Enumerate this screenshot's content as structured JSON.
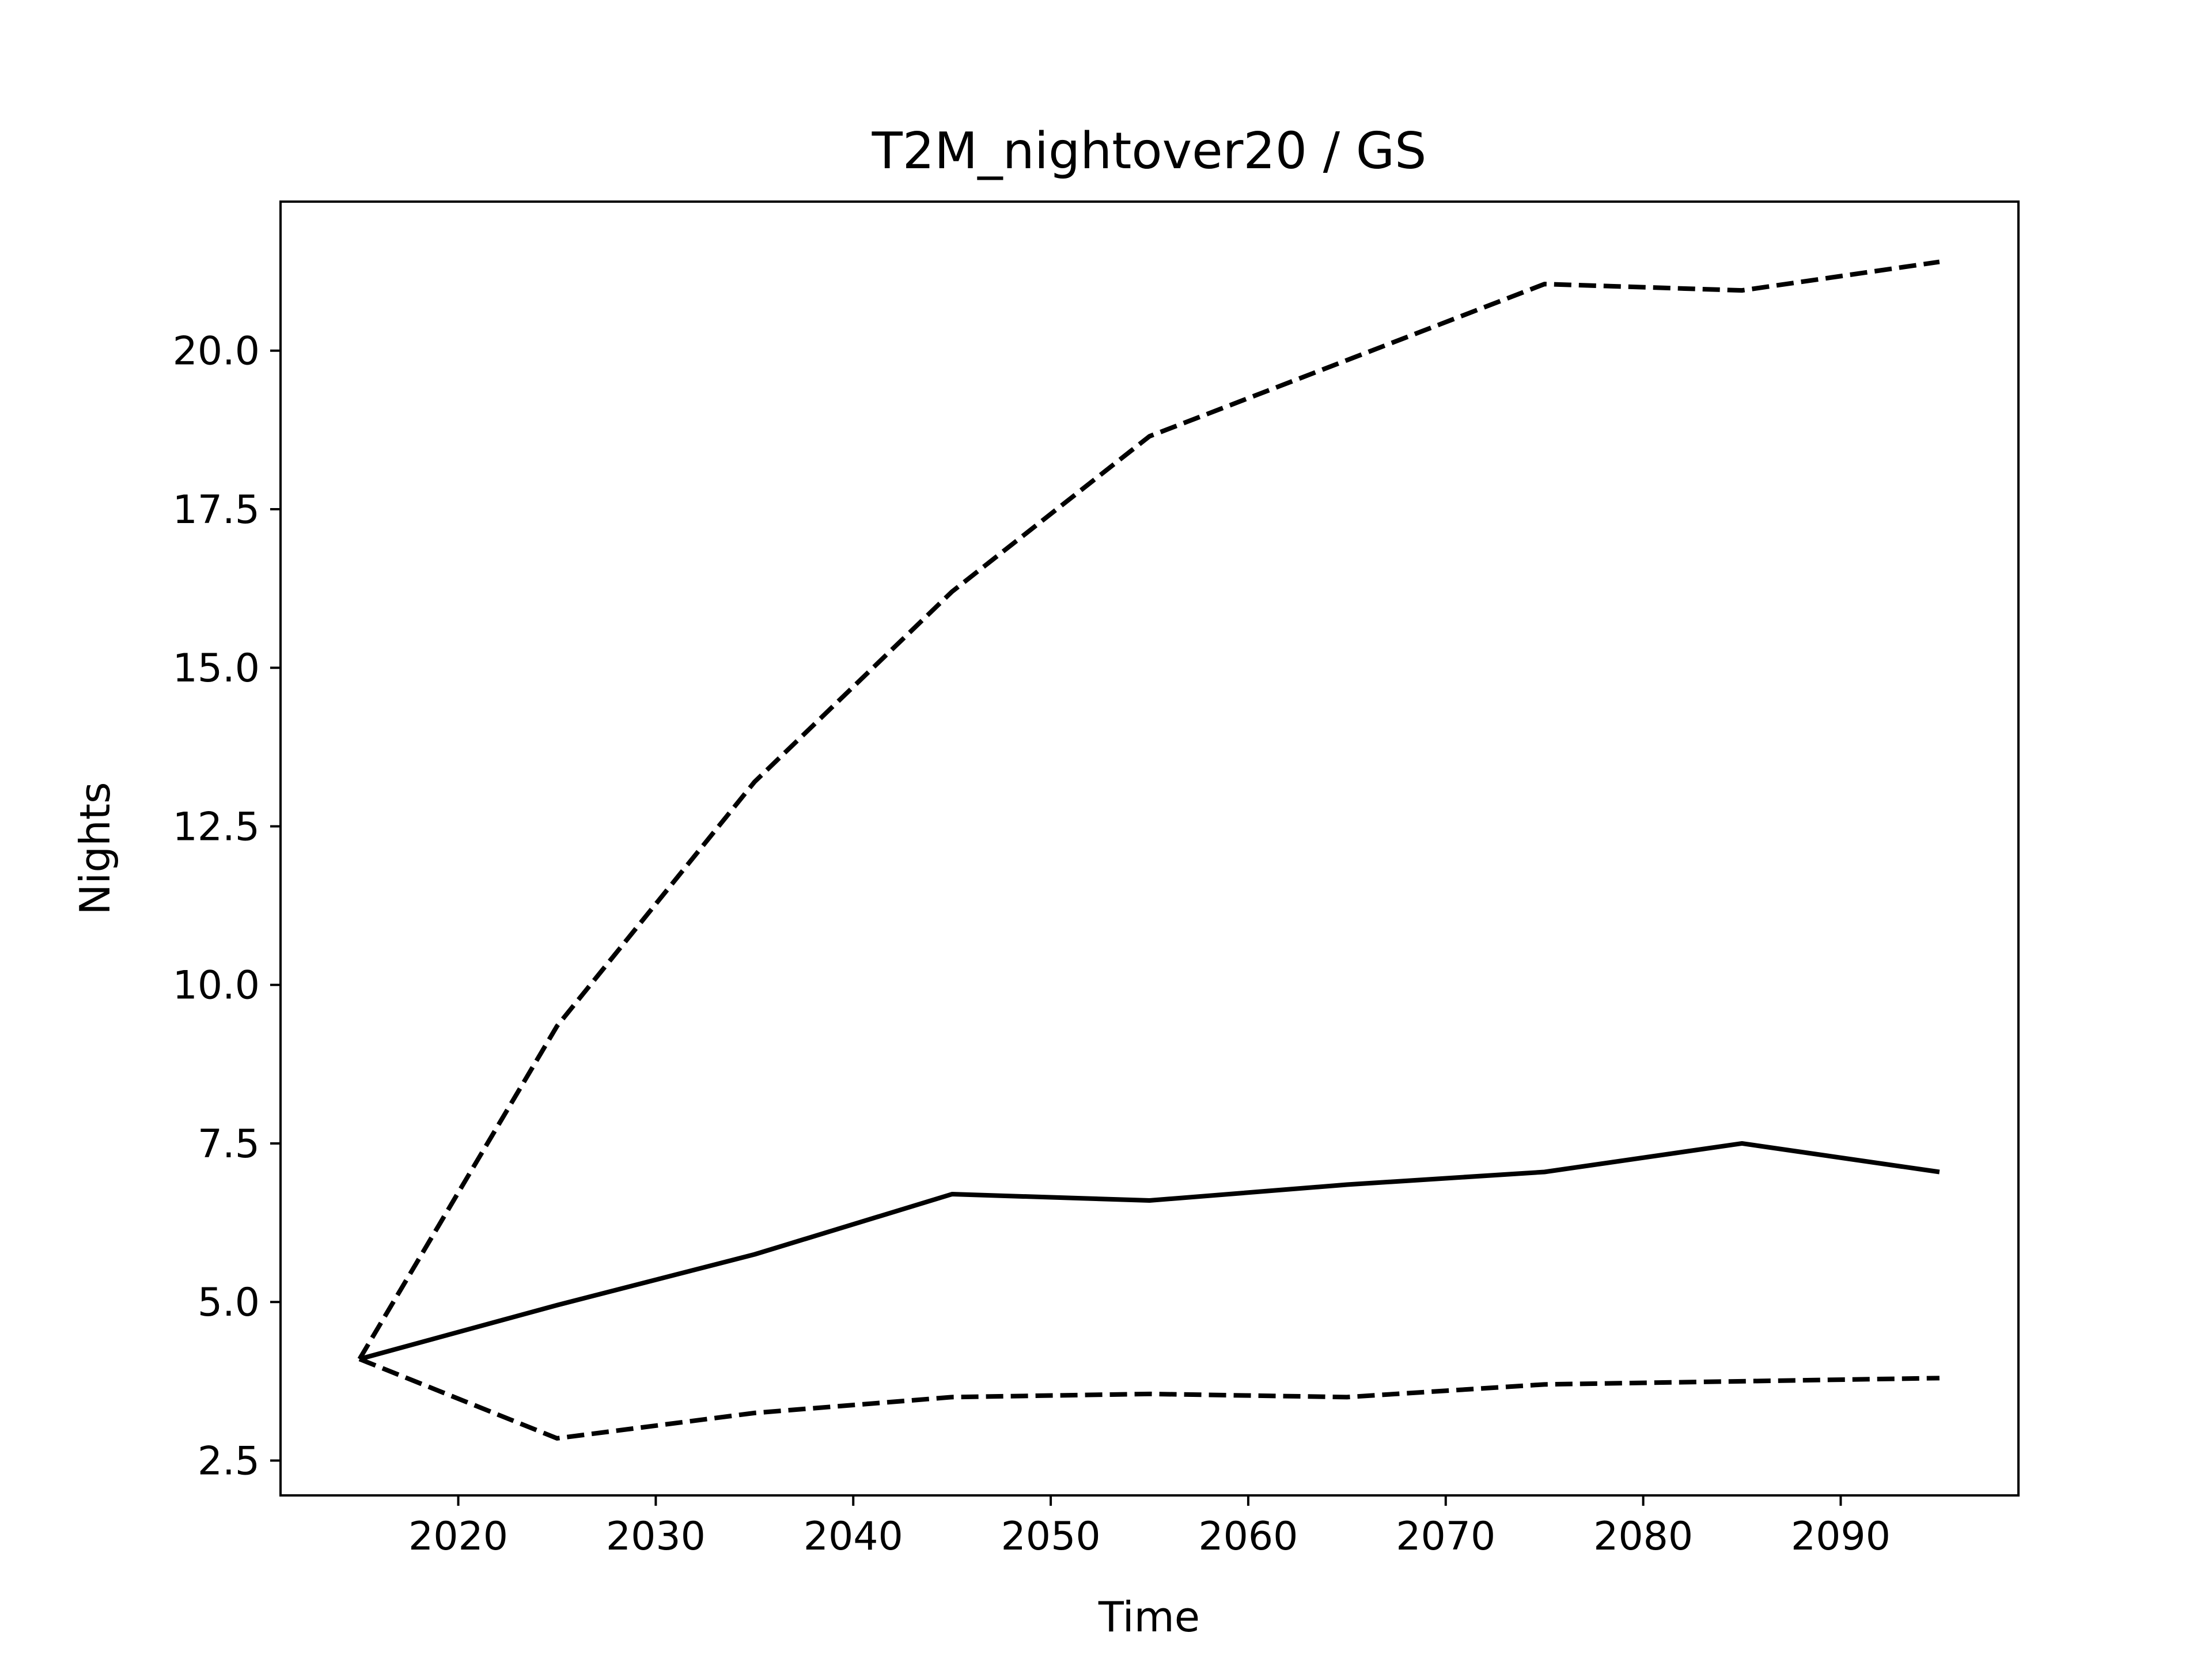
{
  "chart_data": {
    "type": "line",
    "title": "T2M_nightover20 / GS",
    "xlabel": "Time",
    "ylabel": "Nights",
    "xlim": [
      2011,
      2099
    ],
    "ylim": [
      1.95,
      22.35
    ],
    "xticks": [
      2020,
      2030,
      2040,
      2050,
      2060,
      2070,
      2080,
      2090
    ],
    "yticks": [
      2.5,
      5.0,
      7.5,
      10.0,
      12.5,
      15.0,
      17.5,
      20.0
    ],
    "ytick_labels": [
      "2.5",
      "5.0",
      "7.5",
      "10.0",
      "12.5",
      "15.0",
      "17.5",
      "20.0"
    ],
    "grid": false,
    "x": [
      2015,
      2025,
      2035,
      2045,
      2055,
      2065,
      2075,
      2085,
      2095
    ],
    "series": [
      {
        "style": "dashed",
        "color": "#000000",
        "values": [
          4.1,
          9.35,
          13.2,
          16.2,
          18.65,
          19.85,
          21.05,
          20.95,
          21.4
        ]
      },
      {
        "style": "solid",
        "color": "#000000",
        "values": [
          4.1,
          4.95,
          5.75,
          6.7,
          6.6,
          6.85,
          7.05,
          7.5,
          7.05
        ]
      },
      {
        "style": "dashed",
        "color": "#000000",
        "values": [
          4.1,
          2.85,
          3.25,
          3.5,
          3.55,
          3.5,
          3.7,
          3.75,
          3.8
        ]
      }
    ]
  }
}
